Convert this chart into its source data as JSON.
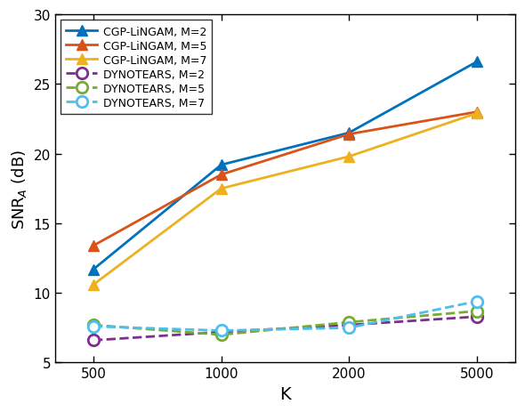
{
  "x": [
    500,
    1000,
    2000,
    5000
  ],
  "x_positions": [
    1,
    2,
    3,
    4
  ],
  "cgp_m2": [
    11.7,
    19.2,
    21.5,
    26.6
  ],
  "cgp_m5": [
    13.4,
    18.5,
    21.4,
    23.0
  ],
  "cgp_m7": [
    10.6,
    17.5,
    19.8,
    22.9
  ],
  "dyn_m2": [
    6.6,
    7.2,
    7.7,
    8.3
  ],
  "dyn_m5": [
    7.7,
    7.0,
    7.9,
    8.7
  ],
  "dyn_m7": [
    7.6,
    7.3,
    7.5,
    9.4
  ],
  "cgp_m2_color": "#0072bd",
  "cgp_m5_color": "#d95319",
  "cgp_m7_color": "#edb120",
  "dyn_m2_color": "#7e2f8e",
  "dyn_m5_color": "#77ac30",
  "dyn_m7_color": "#4dbeee",
  "ylabel": "SNR$_A$ (dB)",
  "xlabel": "K",
  "ylim": [
    5,
    30
  ],
  "yticks": [
    5,
    10,
    15,
    20,
    25,
    30
  ],
  "xtick_labels": [
    "500",
    "1000",
    "2000",
    "5000"
  ],
  "legend_labels": [
    "CGP-LiNGAM, M=2",
    "CGP-LiNGAM, M=5",
    "CGP-LiNGAM, M=7",
    "DYNOTEARS, M=2",
    "DYNOTEARS, M=5",
    "DYNOTEARS, M=7"
  ]
}
